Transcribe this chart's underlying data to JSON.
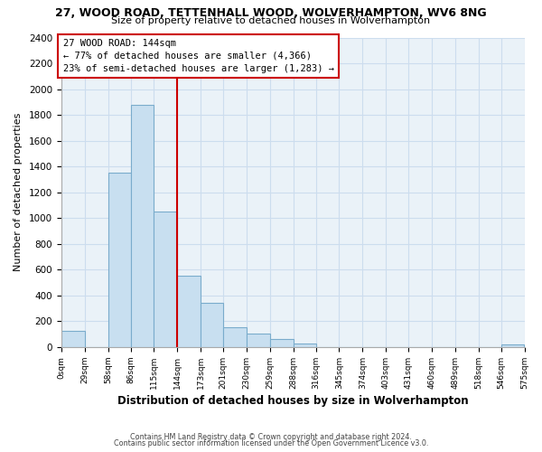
{
  "title": "27, WOOD ROAD, TETTENHALL WOOD, WOLVERHAMPTON, WV6 8NG",
  "subtitle": "Size of property relative to detached houses in Wolverhampton",
  "xlabel": "Distribution of detached houses by size in Wolverhampton",
  "ylabel": "Number of detached properties",
  "bar_color": "#c8dff0",
  "bar_edge_color": "#7aaccc",
  "bin_edges": [
    0,
    29,
    58,
    86,
    115,
    144,
    173,
    201,
    230,
    259,
    288,
    316,
    345,
    374,
    403,
    431,
    460,
    489,
    518,
    546,
    575
  ],
  "bar_heights": [
    125,
    0,
    1350,
    1880,
    1050,
    550,
    340,
    155,
    105,
    60,
    30,
    0,
    0,
    0,
    0,
    0,
    0,
    0,
    0,
    20
  ],
  "tick_labels": [
    "0sqm",
    "29sqm",
    "58sqm",
    "86sqm",
    "115sqm",
    "144sqm",
    "173sqm",
    "201sqm",
    "230sqm",
    "259sqm",
    "288sqm",
    "316sqm",
    "345sqm",
    "374sqm",
    "403sqm",
    "431sqm",
    "460sqm",
    "489sqm",
    "518sqm",
    "546sqm",
    "575sqm"
  ],
  "vline_x": 144,
  "vline_color": "#cc0000",
  "annotation_title": "27 WOOD ROAD: 144sqm",
  "annotation_line1": "← 77% of detached houses are smaller (4,366)",
  "annotation_line2": "23% of semi-detached houses are larger (1,283) →",
  "annotation_box_color": "#cc0000",
  "ylim": [
    0,
    2400
  ],
  "yticks": [
    0,
    200,
    400,
    600,
    800,
    1000,
    1200,
    1400,
    1600,
    1800,
    2000,
    2200,
    2400
  ],
  "footer1": "Contains HM Land Registry data © Crown copyright and database right 2024.",
  "footer2": "Contains public sector information licensed under the Open Government Licence v3.0.",
  "bg_color": "#ffffff",
  "grid_color": "#ccddee",
  "axes_bg_color": "#eaf2f8"
}
